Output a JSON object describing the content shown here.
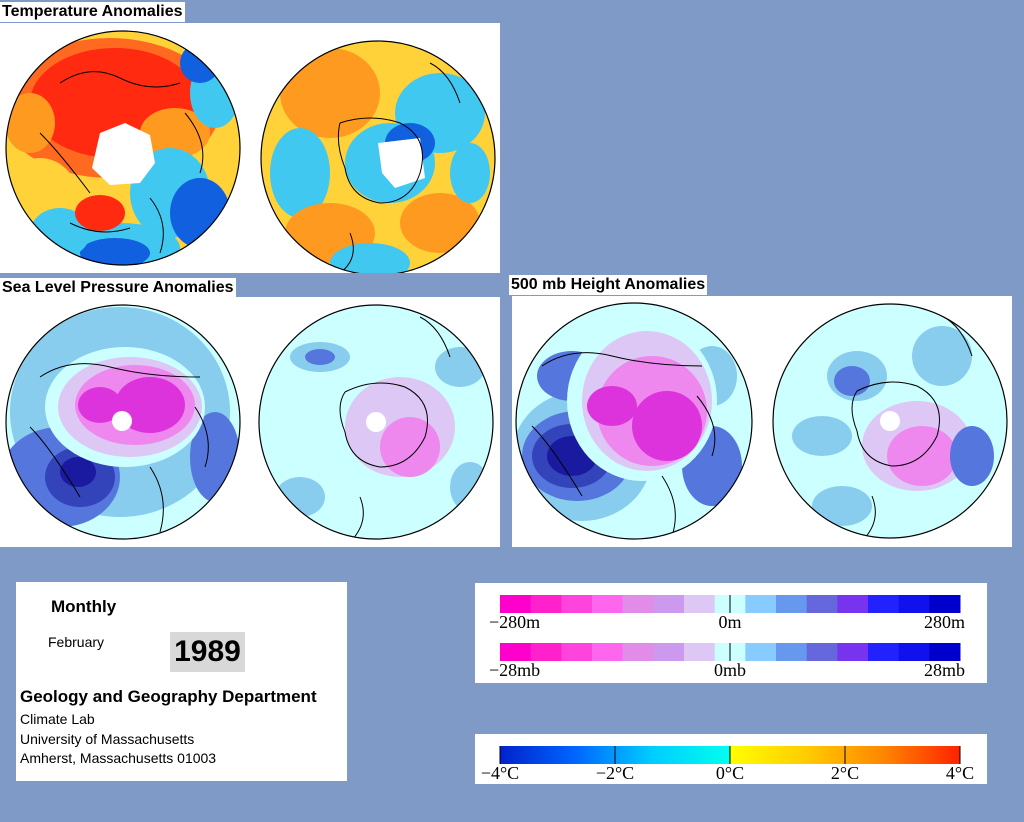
{
  "titles": {
    "temperature": "Temperature Anomalies",
    "slp": "Sea Level Pressure Anomalies",
    "height500": "500 mb Height Anomalies"
  },
  "info": {
    "period_label": "Monthly",
    "month": "February",
    "year": "1989",
    "department": "Geology and Geography Department",
    "lab": "Climate Lab",
    "university": "University of Massachusetts",
    "address": "Amherst, Massachusetts 01003"
  },
  "legends": {
    "height": {
      "left": "−280m",
      "center": "0m",
      "right": "280m",
      "colors": [
        "#ff00cc",
        "#ff22cc",
        "#ff44dd",
        "#ff66ee",
        "#e08ce8",
        "#cc99ee",
        "#ddc8f5",
        "#ccffff",
        "#88ccff",
        "#6699ee",
        "#6666dd",
        "#7733ee",
        "#2222ff",
        "#1111ee",
        "#0000cc"
      ]
    },
    "pressure": {
      "left": "−28mb",
      "center": "0mb",
      "right": "28mb",
      "colors": [
        "#ff00cc",
        "#ff22cc",
        "#ff44dd",
        "#ff66ee",
        "#e08ce8",
        "#cc99ee",
        "#ddc8f5",
        "#ccffff",
        "#88ccff",
        "#6699ee",
        "#6666dd",
        "#7733ee",
        "#2222ff",
        "#1111ee",
        "#0000cc"
      ]
    },
    "temperature": {
      "labels": [
        "−4°C",
        "−2°C",
        "0°C",
        "2°C",
        "4°C"
      ],
      "gradient_cold": [
        "#0022cc",
        "#0066ff",
        "#00ccff",
        "#00ffee"
      ],
      "gradient_warm": [
        "#ffff00",
        "#ffcc00",
        "#ff8800",
        "#ff2200"
      ]
    }
  },
  "map_colors": {
    "temp_warm": "#ff2a10",
    "temp_orange": "#ff9a20",
    "temp_yellow": "#ffd23a",
    "temp_cyan": "#40c8f0",
    "temp_blue": "#1060e0",
    "anom_bg": "#ccffff",
    "anom_light_blue": "#88ccee",
    "anom_blue": "#5577dd",
    "anom_dark_blue": "#1a1aa0",
    "anom_lavender": "#ddc8f5",
    "anom_pink": "#ee88ee",
    "anom_magenta": "#dd33dd"
  }
}
